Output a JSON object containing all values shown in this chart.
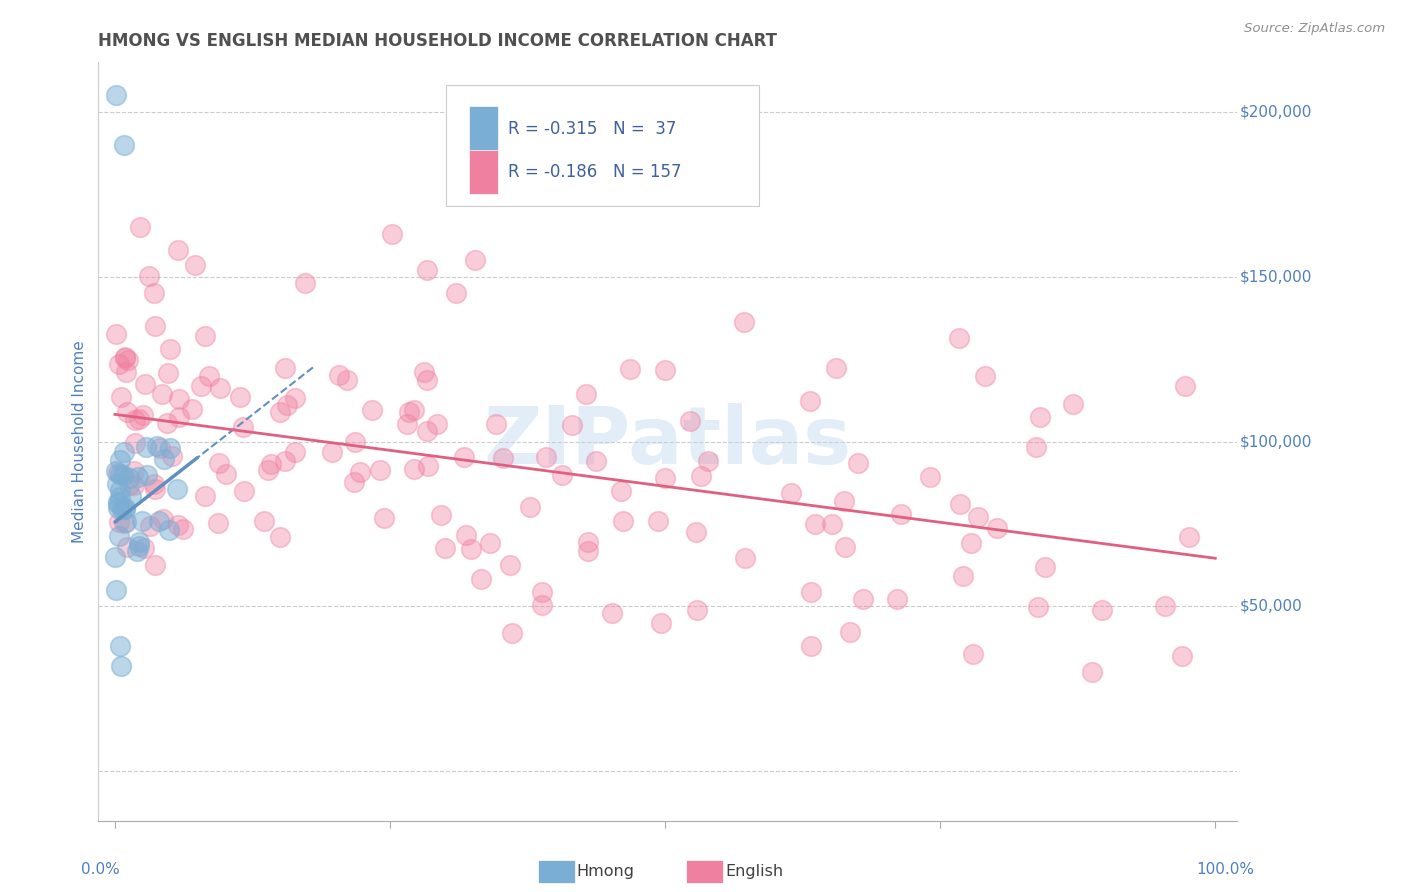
{
  "title": "HMONG VS ENGLISH MEDIAN HOUSEHOLD INCOME CORRELATION CHART",
  "source": "Source: ZipAtlas.com",
  "ylabel": "Median Household Income",
  "watermark": "ZIPatlas",
  "legend_r_hmong": "R = -0.315",
  "legend_n_hmong": "N =  37",
  "legend_r_english": "R = -0.186",
  "legend_n_english": "N = 157",
  "legend_label_hmong": "Hmong",
  "legend_label_english": "English",
  "hmong_color": "#7aaed4",
  "english_color": "#f080a0",
  "trendline_hmong_color": "#6090c0",
  "trendline_english_color": "#e06080",
  "background_color": "#ffffff",
  "title_color": "#505050",
  "axis_label_color": "#5080c0",
  "source_color": "#909090",
  "ytick_right_labels": [
    "$200,000",
    "$150,000",
    "$100,000",
    "$50,000"
  ],
  "ytick_right_values": [
    200000,
    150000,
    100000,
    50000
  ]
}
